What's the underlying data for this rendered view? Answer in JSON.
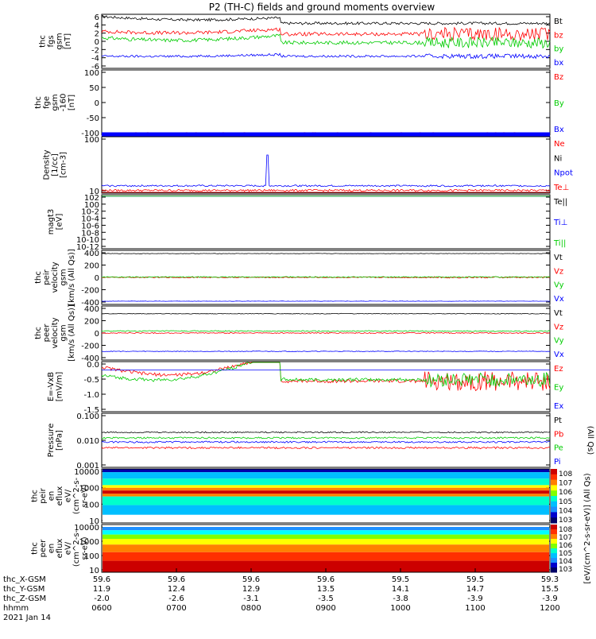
{
  "title": "P2 (TH-C) fields and ground moments overview",
  "colors": {
    "black": "#000000",
    "red": "#ff0000",
    "green": "#00cc00",
    "blue": "#0000ff"
  },
  "chart_data": [
    {
      "type": "line",
      "ylabel": [
        "thc",
        "fgs",
        "gsm",
        "[nT]"
      ],
      "yticks": [
        "6",
        "4",
        "2",
        "0",
        "-2",
        "-4",
        "-6"
      ],
      "ylim": [
        -6,
        6
      ],
      "series": [
        {
          "name": "Bt",
          "color": "black",
          "level": 4.0,
          "noise": 0.3,
          "early": [
            5.5,
            4.5
          ],
          "late": 0.3
        },
        {
          "name": "bz",
          "color": "red",
          "level": 1.6,
          "noise": 0.4,
          "early": [
            2.2,
            1.3
          ],
          "late": 1.5
        },
        {
          "name": "by",
          "color": "green",
          "level": -0.3,
          "noise": 0.4,
          "early": [
            0.8,
            -0.5
          ],
          "late": 1.2
        },
        {
          "name": "bx",
          "color": "blue",
          "level": -3.3,
          "noise": 0.25,
          "early": [
            -3.3,
            -3.6
          ],
          "late": 0.5
        }
      ]
    },
    {
      "type": "line",
      "ylabel": [
        "thc",
        "fge",
        "gsm",
        "-160",
        "[nT]"
      ],
      "yticks": [
        "100",
        "50",
        "0",
        "-50",
        "-100"
      ],
      "ylim": [
        -150,
        100
      ],
      "series": [
        {
          "name": "Bz",
          "color": "red",
          "level": -148,
          "noise": 1.5
        },
        {
          "name": "By",
          "color": "green",
          "level": -148,
          "noise": 1
        },
        {
          "name": "Bx",
          "color": "blue",
          "level": -150,
          "noise": 1
        }
      ]
    },
    {
      "type": "line",
      "yscale": "log",
      "ylabel": [
        "Density",
        "[1/cc]",
        "[cm-3]"
      ],
      "yticks": [
        "100",
        "10"
      ],
      "series": [
        {
          "name": "Ne",
          "color": "red",
          "level": 6.5,
          "noise": 0.6
        },
        {
          "name": "Ni",
          "color": "black",
          "level": 5.0,
          "noise": 0.4
        },
        {
          "name": "Npot",
          "color": "blue",
          "level": 10.0,
          "noise": 0.8
        },
        {
          "name": "Te⊥",
          "color": "red",
          "level": 5.0,
          "noise": 0.3
        }
      ],
      "spike": {
        "time": "0746",
        "value": 180
      }
    },
    {
      "type": "line",
      "yscale": "log",
      "ylabel": [
        "magt3",
        "[eV]"
      ],
      "yticks": [
        "10^2",
        "10^0",
        "10^-2",
        "10^-4",
        "10^-6",
        "10^-8",
        "10^-10",
        "10^-12"
      ],
      "series": [
        {
          "name": "Te||",
          "color": "black"
        },
        {
          "name": "Ti⊥",
          "color": "blue"
        },
        {
          "name": "Ti||",
          "color": "green"
        }
      ]
    },
    {
      "type": "line",
      "ylabel": [
        "thc",
        "peir",
        "velocity",
        "gsm",
        "[km/s (All Qs)]"
      ],
      "yticks": [
        "400",
        "200",
        "0",
        "-200",
        "-400"
      ],
      "ylim": [
        -420,
        420
      ],
      "series": [
        {
          "name": "Vt",
          "color": "black",
          "level": 370,
          "noise": 3
        },
        {
          "name": "Vz",
          "color": "red",
          "level": 0,
          "noise": 8,
          "late": 12
        },
        {
          "name": "Vy",
          "color": "green",
          "level": 5,
          "noise": 8
        },
        {
          "name": "Vx",
          "color": "blue",
          "level": -370,
          "noise": 3
        }
      ]
    },
    {
      "type": "line",
      "ylabel": [
        "thc",
        "peer",
        "velocity",
        "gsm",
        "[km/s (All Qs)]"
      ],
      "yticks": [
        "400",
        "200",
        "0",
        "-200",
        "-400"
      ],
      "ylim": [
        -420,
        420
      ],
      "series": [
        {
          "name": "Vt",
          "color": "black",
          "level": 300,
          "noise": 5
        },
        {
          "name": "Vz",
          "color": "red",
          "level": 0,
          "noise": 8
        },
        {
          "name": "Vy",
          "color": "green",
          "level": 30,
          "noise": 8
        },
        {
          "name": "Vx",
          "color": "blue",
          "level": -285,
          "noise": 5
        }
      ]
    },
    {
      "type": "line",
      "ylabel": [
        "E=-VxB",
        "[mV/m]"
      ],
      "yticks": [
        "0.0",
        "-0.5",
        "-1.0",
        "-1.5"
      ],
      "ylim": [
        -1.5,
        0.3
      ],
      "series": [
        {
          "name": "Ez",
          "color": "red",
          "level": -0.4,
          "noise": 0.06,
          "early": [
            0.1,
            -0.7
          ],
          "late": 0.35
        },
        {
          "name": "Ey",
          "color": "green",
          "level": -0.35,
          "noise": 0.06,
          "early": [
            -0.2,
            -1.0
          ],
          "late": 0.25
        },
        {
          "name": "Ex",
          "color": "blue",
          "level": 0.0,
          "noise": 0.0
        }
      ]
    },
    {
      "type": "line",
      "yscale": "log",
      "ylabel": [
        "Pressure",
        "[nPa]"
      ],
      "yticks": [
        "0.100",
        "0.010",
        "0.001"
      ],
      "series": [
        {
          "name": "Pt",
          "color": "black",
          "level": 0.031,
          "noise": 0.002
        },
        {
          "name": "Pb",
          "color": "red",
          "level": 0.0068,
          "noise": 0.0006
        },
        {
          "name": "Pe",
          "color": "green",
          "level": 0.018,
          "noise": 0.0015
        },
        {
          "name": "Pi",
          "color": "blue",
          "level": 0.012,
          "noise": 0.001
        }
      ],
      "side_label": "(All Qs)"
    },
    {
      "type": "heatmap",
      "ylabel": [
        "thc",
        "peir",
        "en",
        "eflux",
        "eV/",
        "(cm^2-s-",
        "sr-eV)"
      ],
      "yticks": [
        "10000",
        "1000",
        "100",
        "10"
      ],
      "colorbar": {
        "label": "[eV/(cm^2-s-sr-eV)] (All Qs)",
        "ticks": [
          "10^8",
          "10^7",
          "10^6",
          "10^5",
          "10^4",
          "10^3"
        ]
      }
    },
    {
      "type": "heatmap",
      "ylabel": [
        "thc",
        "peer",
        "en",
        "eflux",
        "eV/",
        "(cm^2-s-",
        "sr-eV)"
      ],
      "yticks": [
        "10000",
        "1000",
        "100",
        "10"
      ],
      "colorbar": {
        "label": "[eV/(cm^2-s-sr-eV)]",
        "ticks": [
          "10^8",
          "10^7",
          "10^6",
          "10^5",
          "10^4",
          "10^3"
        ]
      }
    }
  ],
  "xaxis": {
    "rows": [
      {
        "label": "thc_X-GSM",
        "values": [
          "59.6",
          "59.6",
          "59.6",
          "59.6",
          "59.5",
          "59.5",
          "59.3"
        ]
      },
      {
        "label": "thc_Y-GSM",
        "values": [
          "11.9",
          "12.4",
          "12.9",
          "13.5",
          "14.1",
          "14.7",
          "15.5"
        ]
      },
      {
        "label": "thc_Z-GSM",
        "values": [
          "-2.0",
          "-2.6",
          "-3.1",
          "-3.5",
          "-3.8",
          "-3.9",
          "-3.9"
        ]
      },
      {
        "label": "hhmm",
        "values": [
          "0600",
          "0700",
          "0800",
          "0900",
          "1000",
          "1100",
          "1200"
        ]
      }
    ],
    "date": "2021 Jan 14"
  }
}
